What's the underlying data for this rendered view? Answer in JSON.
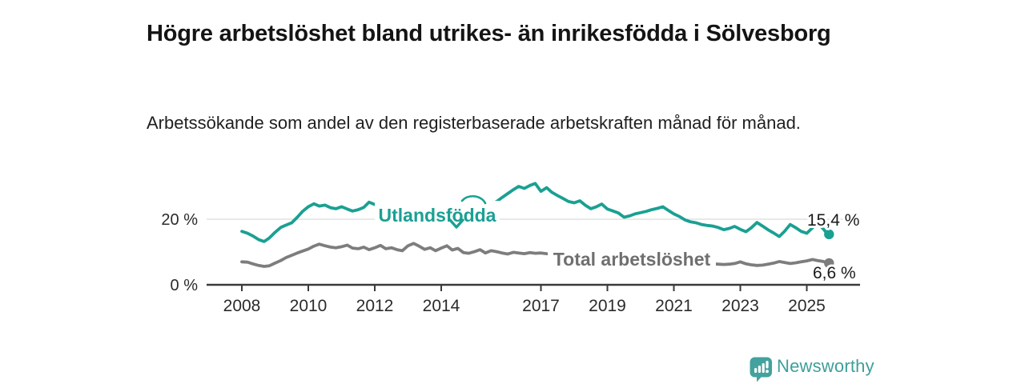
{
  "header": {
    "title": "Högre arbetslöshet bland utrikes- än inrikesfödda i Sölvesborg",
    "subtitle": "Arbetssökande som andel av den registerbaserade arbetskraften månad för månad."
  },
  "footer": {
    "brand": "Newsworthy",
    "brand_color": "#3e9f9a",
    "logo_icon": "bar-chart-speech-bubble-icon"
  },
  "colors": {
    "foreign_born_line": "#1aa093",
    "total_line": "#7d7d7d",
    "total_label": "#6f6f6f",
    "gridline": "#d9d9d9",
    "axis": "#3a3a3a",
    "tick_text": "#2b2b2b",
    "annotation_text": "#1a1a1a"
  },
  "chart_data": {
    "type": "line",
    "title": "Högre arbetslöshet bland utrikes- än inrikesfödda i Sölvesborg",
    "subtitle": "Arbetssökande som andel av den registerbaserade arbetskraften månad för månad.",
    "xlabel": "",
    "ylabel": "",
    "unit": "%",
    "grid": "single horizontal gridline at 20 %",
    "legend_position": "inline labels on lines",
    "x_axis": {
      "range": [
        2007.3,
        2026.3
      ],
      "tick_years": [
        2008,
        2010,
        2012,
        2014,
        2017,
        2019,
        2021,
        2023,
        2025
      ],
      "tick_labels": [
        "2008",
        "2010",
        "2012",
        "2014",
        "2017",
        "2019",
        "2021",
        "2023",
        "2025"
      ]
    },
    "y_axis": {
      "range": [
        0,
        34
      ],
      "ticks": [
        {
          "value": 0,
          "label": "0 %"
        },
        {
          "value": 20,
          "label": "20 %"
        }
      ]
    },
    "series": [
      {
        "name": "Utlandsfödda",
        "color": "#1aa093",
        "end_label": "15,4 %",
        "end_value": 15.4,
        "points": [
          [
            2008.0,
            16.3
          ],
          [
            2008.17,
            15.7
          ],
          [
            2008.33,
            14.9
          ],
          [
            2008.5,
            13.8
          ],
          [
            2008.67,
            13.2
          ],
          [
            2008.83,
            14.3
          ],
          [
            2009.0,
            16.0
          ],
          [
            2009.17,
            17.5
          ],
          [
            2009.33,
            18.2
          ],
          [
            2009.5,
            18.9
          ],
          [
            2009.67,
            20.6
          ],
          [
            2009.83,
            22.4
          ],
          [
            2010.0,
            23.8
          ],
          [
            2010.17,
            24.7
          ],
          [
            2010.33,
            24.0
          ],
          [
            2010.5,
            24.3
          ],
          [
            2010.67,
            23.5
          ],
          [
            2010.83,
            23.2
          ],
          [
            2011.0,
            23.8
          ],
          [
            2011.17,
            23.1
          ],
          [
            2011.33,
            22.5
          ],
          [
            2011.5,
            22.9
          ],
          [
            2011.67,
            23.6
          ],
          [
            2011.83,
            25.2
          ],
          [
            2012.0,
            24.5
          ],
          [
            2012.17,
            23.6
          ],
          [
            2012.33,
            24.1
          ],
          [
            2012.5,
            23.5
          ],
          [
            2012.67,
            23.9
          ],
          [
            2012.83,
            24.3
          ],
          [
            2013.0,
            23.8
          ],
          [
            2013.17,
            24.2
          ],
          [
            2013.33,
            23.6
          ],
          [
            2013.5,
            24.0
          ],
          [
            2013.67,
            24.4
          ],
          [
            2013.83,
            23.8
          ],
          [
            2014.0,
            24.2
          ],
          [
            2014.17,
            23.6
          ],
          [
            2014.33,
            23.1
          ],
          [
            2014.5,
            23.7
          ],
          [
            2014.67,
            24.2
          ],
          [
            2014.83,
            24.6
          ],
          [
            2015.0,
            24.1
          ],
          [
            2015.17,
            24.5
          ],
          [
            2015.33,
            25.0
          ],
          [
            2015.5,
            24.6
          ],
          [
            2015.67,
            25.4
          ],
          [
            2015.83,
            26.6
          ],
          [
            2016.0,
            27.8
          ],
          [
            2016.17,
            29.0
          ],
          [
            2016.33,
            30.0
          ],
          [
            2016.5,
            29.4
          ],
          [
            2016.67,
            30.3
          ],
          [
            2016.83,
            30.9
          ],
          [
            2017.0,
            28.5
          ],
          [
            2017.17,
            29.6
          ],
          [
            2017.33,
            28.2
          ],
          [
            2017.5,
            27.2
          ],
          [
            2017.67,
            26.3
          ],
          [
            2017.83,
            25.4
          ],
          [
            2018.0,
            25.0
          ],
          [
            2018.17,
            25.6
          ],
          [
            2018.33,
            24.3
          ],
          [
            2018.5,
            23.2
          ],
          [
            2018.67,
            23.8
          ],
          [
            2018.83,
            24.6
          ],
          [
            2019.0,
            23.1
          ],
          [
            2019.17,
            22.5
          ],
          [
            2019.33,
            21.9
          ],
          [
            2019.5,
            20.6
          ],
          [
            2019.67,
            21.0
          ],
          [
            2019.83,
            21.6
          ],
          [
            2020.0,
            22.0
          ],
          [
            2020.17,
            22.4
          ],
          [
            2020.33,
            22.9
          ],
          [
            2020.5,
            23.3
          ],
          [
            2020.67,
            23.8
          ],
          [
            2020.83,
            22.7
          ],
          [
            2021.0,
            21.6
          ],
          [
            2021.17,
            20.8
          ],
          [
            2021.33,
            19.8
          ],
          [
            2021.5,
            19.2
          ],
          [
            2021.67,
            18.9
          ],
          [
            2021.83,
            18.4
          ],
          [
            2022.0,
            18.1
          ],
          [
            2022.17,
            17.9
          ],
          [
            2022.33,
            17.5
          ],
          [
            2022.5,
            16.8
          ],
          [
            2022.67,
            17.2
          ],
          [
            2022.83,
            17.8
          ],
          [
            2023.0,
            16.9
          ],
          [
            2023.17,
            16.2
          ],
          [
            2023.33,
            17.4
          ],
          [
            2023.5,
            19.0
          ],
          [
            2023.67,
            17.9
          ],
          [
            2023.83,
            16.8
          ],
          [
            2024.0,
            15.8
          ],
          [
            2024.17,
            14.7
          ],
          [
            2024.33,
            16.3
          ],
          [
            2024.5,
            18.4
          ],
          [
            2024.67,
            17.4
          ],
          [
            2024.83,
            16.3
          ],
          [
            2025.0,
            15.7
          ],
          [
            2025.17,
            17.4
          ],
          [
            2025.33,
            18.8
          ],
          [
            2025.5,
            17.0
          ],
          [
            2025.58,
            16.0
          ],
          [
            2025.67,
            15.4
          ]
        ]
      },
      {
        "name": "Total arbetslöshet",
        "color": "#7d7d7d",
        "end_label": "6,6 %",
        "end_value": 6.6,
        "points": [
          [
            2008.0,
            7.0
          ],
          [
            2008.17,
            6.9
          ],
          [
            2008.33,
            6.4
          ],
          [
            2008.5,
            5.9
          ],
          [
            2008.67,
            5.6
          ],
          [
            2008.83,
            5.8
          ],
          [
            2009.0,
            6.6
          ],
          [
            2009.17,
            7.4
          ],
          [
            2009.33,
            8.3
          ],
          [
            2009.5,
            9.0
          ],
          [
            2009.67,
            9.7
          ],
          [
            2009.83,
            10.3
          ],
          [
            2010.0,
            10.9
          ],
          [
            2010.17,
            11.8
          ],
          [
            2010.33,
            12.4
          ],
          [
            2010.5,
            11.9
          ],
          [
            2010.67,
            11.5
          ],
          [
            2010.83,
            11.3
          ],
          [
            2011.0,
            11.6
          ],
          [
            2011.17,
            12.1
          ],
          [
            2011.33,
            11.2
          ],
          [
            2011.5,
            11.0
          ],
          [
            2011.67,
            11.5
          ],
          [
            2011.83,
            10.7
          ],
          [
            2012.0,
            11.3
          ],
          [
            2012.17,
            12.0
          ],
          [
            2012.33,
            11.0
          ],
          [
            2012.5,
            11.3
          ],
          [
            2012.67,
            10.7
          ],
          [
            2012.83,
            10.4
          ],
          [
            2013.0,
            11.9
          ],
          [
            2013.17,
            12.6
          ],
          [
            2013.33,
            11.8
          ],
          [
            2013.5,
            10.8
          ],
          [
            2013.67,
            11.3
          ],
          [
            2013.83,
            10.4
          ],
          [
            2014.0,
            11.2
          ],
          [
            2014.17,
            11.9
          ],
          [
            2014.33,
            10.6
          ],
          [
            2014.5,
            11.1
          ],
          [
            2014.67,
            9.8
          ],
          [
            2014.83,
            9.6
          ],
          [
            2015.0,
            10.1
          ],
          [
            2015.17,
            10.7
          ],
          [
            2015.33,
            9.7
          ],
          [
            2015.5,
            10.4
          ],
          [
            2015.67,
            10.1
          ],
          [
            2015.83,
            9.7
          ],
          [
            2016.0,
            9.4
          ],
          [
            2016.17,
            9.9
          ],
          [
            2016.33,
            9.7
          ],
          [
            2016.5,
            9.5
          ],
          [
            2016.67,
            9.8
          ],
          [
            2016.83,
            9.6
          ],
          [
            2017.0,
            9.7
          ],
          [
            2017.17,
            9.5
          ],
          [
            2017.33,
            9.4
          ],
          [
            2017.5,
            9.3
          ],
          [
            2017.67,
            9.1
          ],
          [
            2017.83,
            9.0
          ],
          [
            2018.0,
            8.8
          ],
          [
            2018.17,
            8.9
          ],
          [
            2018.33,
            8.6
          ],
          [
            2018.5,
            8.4
          ],
          [
            2018.67,
            8.3
          ],
          [
            2018.83,
            8.2
          ],
          [
            2019.0,
            8.1
          ],
          [
            2019.17,
            8.0
          ],
          [
            2019.33,
            7.9
          ],
          [
            2019.5,
            7.8
          ],
          [
            2019.67,
            7.9
          ],
          [
            2019.83,
            8.0
          ],
          [
            2020.0,
            8.1
          ],
          [
            2020.17,
            8.4
          ],
          [
            2020.33,
            8.6
          ],
          [
            2020.5,
            8.7
          ],
          [
            2020.67,
            8.5
          ],
          [
            2020.83,
            8.2
          ],
          [
            2021.0,
            7.9
          ],
          [
            2021.17,
            7.7
          ],
          [
            2021.33,
            7.4
          ],
          [
            2021.5,
            7.2
          ],
          [
            2021.67,
            7.0
          ],
          [
            2021.83,
            6.8
          ],
          [
            2022.0,
            6.7
          ],
          [
            2022.17,
            6.4
          ],
          [
            2022.33,
            6.3
          ],
          [
            2022.5,
            6.2
          ],
          [
            2022.67,
            6.3
          ],
          [
            2022.83,
            6.5
          ],
          [
            2023.0,
            7.0
          ],
          [
            2023.17,
            6.4
          ],
          [
            2023.33,
            6.1
          ],
          [
            2023.5,
            5.9
          ],
          [
            2023.67,
            6.0
          ],
          [
            2023.83,
            6.3
          ],
          [
            2024.0,
            6.6
          ],
          [
            2024.17,
            7.1
          ],
          [
            2024.33,
            6.8
          ],
          [
            2024.5,
            6.5
          ],
          [
            2024.67,
            6.7
          ],
          [
            2024.83,
            7.0
          ],
          [
            2025.0,
            7.3
          ],
          [
            2025.17,
            7.7
          ],
          [
            2025.33,
            7.4
          ],
          [
            2025.5,
            7.1
          ],
          [
            2025.67,
            6.6
          ]
        ]
      }
    ]
  }
}
